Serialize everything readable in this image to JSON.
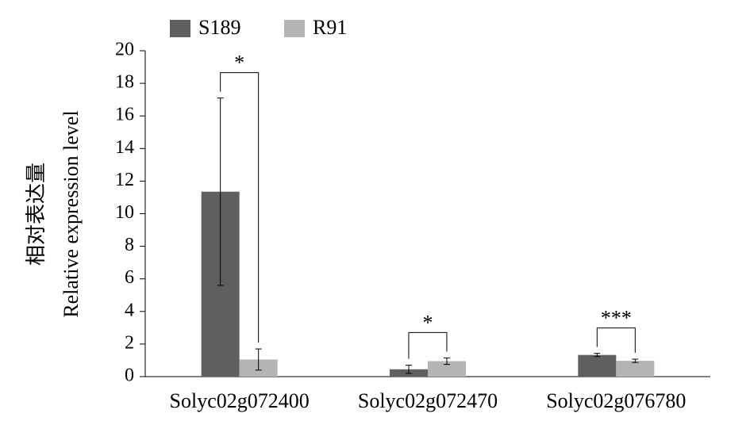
{
  "chart_data": {
    "type": "bar",
    "ylabel": [
      "相对表达量",
      "Relative expression level"
    ],
    "categories": [
      "Solyc02g072400",
      "Solyc02g072470",
      "Solyc02g076780"
    ],
    "series": [
      {
        "name": "S189",
        "color": "#5f5f5f",
        "values": [
          11.35,
          0.45,
          1.33
        ],
        "errors": [
          5.75,
          0.25,
          0.1
        ]
      },
      {
        "name": "R91",
        "color": "#b4b4b4",
        "values": [
          1.05,
          0.95,
          0.97
        ],
        "errors": [
          0.65,
          0.2,
          0.1
        ]
      }
    ],
    "significance": [
      "*",
      "*",
      "***"
    ],
    "ylim": [
      0,
      20
    ],
    "yticks": [
      0,
      2,
      4,
      6,
      8,
      10,
      12,
      14,
      16,
      18,
      20
    ],
    "grid": false,
    "legend": "top"
  }
}
